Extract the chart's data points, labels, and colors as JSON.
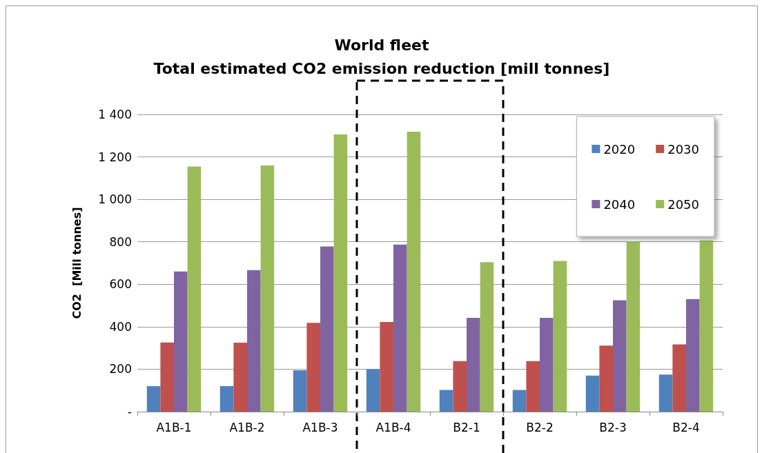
{
  "chart_data": {
    "type": "bar",
    "title": "World fleet",
    "subtitle": "Total estimated CO2 emission reduction [mill tonnes]",
    "ylabel": "CO2  [Mill tonnes]",
    "categories": [
      "A1B-1",
      "A1B-2",
      "A1B-3",
      "A1B-4",
      "B2-1",
      "B2-2",
      "B2-3",
      "B2-4"
    ],
    "series": [
      {
        "name": "2020",
        "color": "#4f81bd",
        "values": [
          120,
          120,
          195,
          200,
          102,
          102,
          170,
          175
        ]
      },
      {
        "name": "2030",
        "color": "#c0504d",
        "values": [
          326,
          325,
          418,
          422,
          238,
          238,
          311,
          317
        ]
      },
      {
        "name": "2040",
        "color": "#8064a2",
        "values": [
          660,
          667,
          778,
          787,
          442,
          442,
          525,
          530
        ]
      },
      {
        "name": "2050",
        "color": "#9bbb59",
        "values": [
          1155,
          1160,
          1306,
          1319,
          704,
          710,
          800,
          806
        ]
      }
    ],
    "ylim": [
      0,
      1400
    ],
    "yticks": [
      {
        "value": 0,
        "label": "-"
      },
      200,
      400,
      600,
      800,
      {
        "value": 1000,
        "label": "1 000"
      },
      {
        "value": 1200,
        "label": "1 200"
      },
      {
        "value": 1400,
        "label": "1 400"
      }
    ],
    "grid": "y",
    "legend": "top right"
  }
}
